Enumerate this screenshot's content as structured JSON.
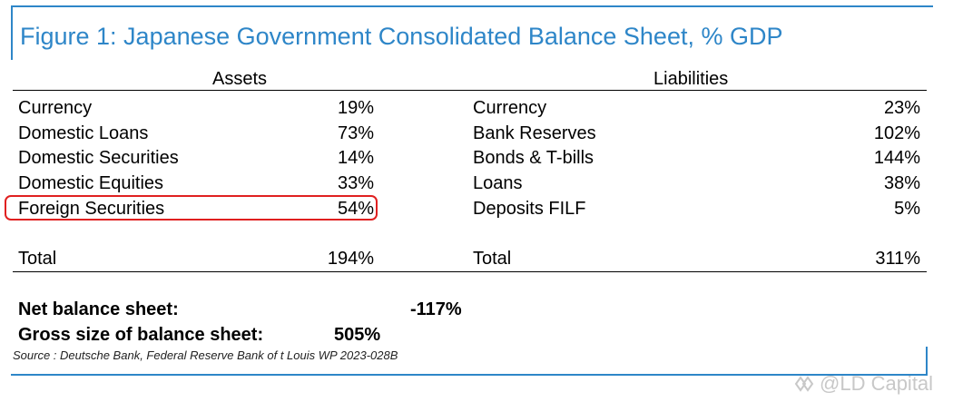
{
  "title": "Figure 1: Japanese Government Consolidated Balance Sheet, % GDP",
  "assets": {
    "header": "Assets",
    "rows": [
      {
        "label": "Currency",
        "value": "19%"
      },
      {
        "label": "Domestic Loans",
        "value": "73%"
      },
      {
        "label": "Domestic Securities",
        "value": "14%"
      },
      {
        "label": "Domestic Equities",
        "value": "33%"
      },
      {
        "label": "Foreign Securities",
        "value": "54%"
      }
    ],
    "total_label": "Total",
    "total_value": "194%"
  },
  "liabilities": {
    "header": "Liabilities",
    "rows": [
      {
        "label": "Currency",
        "value": "23%"
      },
      {
        "label": "Bank Reserves",
        "value": "102%"
      },
      {
        "label": "Bonds & T-bills",
        "value": "144%"
      },
      {
        "label": "Loans",
        "value": "38%"
      },
      {
        "label": "Deposits FILF",
        "value": "5%"
      }
    ],
    "total_label": "Total",
    "total_value": "311%"
  },
  "summary": {
    "net_label": "Net balance sheet:",
    "net_value": "-117%",
    "gross_label": "Gross size of balance sheet:",
    "gross_value": "505%"
  },
  "source": "Source : Deutsche Bank, Federal Reserve Bank of t Louis WP 2023-028B",
  "watermark": "@LD Capital",
  "colors": {
    "accent": "#2e86c8",
    "highlight": "#e02020"
  }
}
